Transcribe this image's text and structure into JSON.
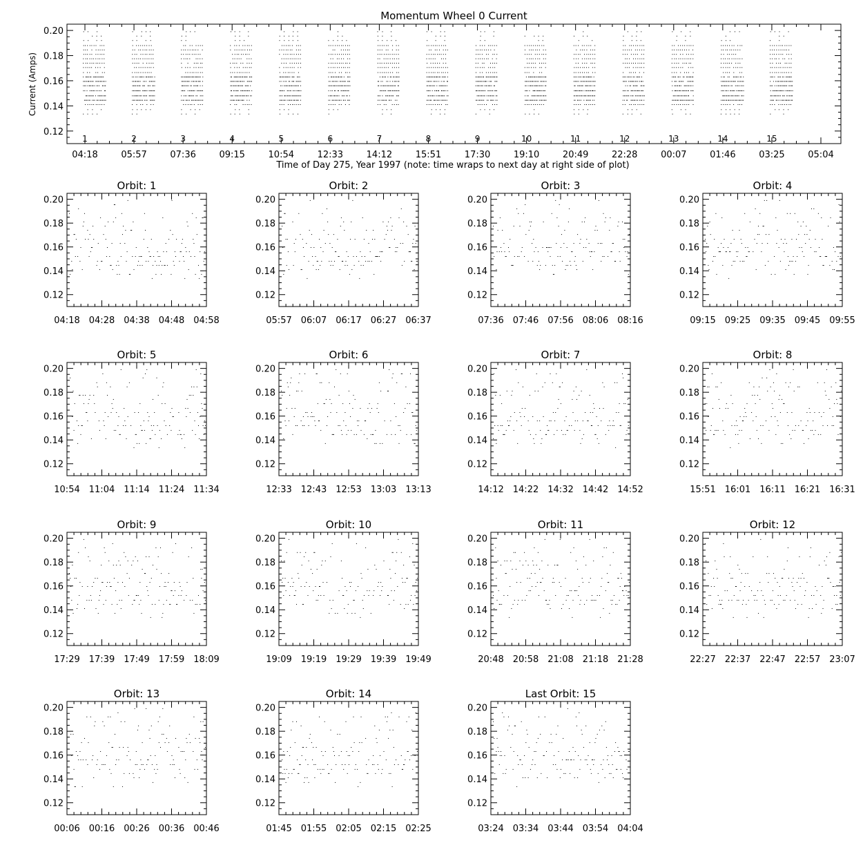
{
  "chart_data": {
    "type": "scatter",
    "title": "Momentum Wheel 0 Current",
    "ylabel": "Current (Amps)",
    "xlabel": "Time of Day 275, Year 1997 (note: time wraps to next day at right side of plot)",
    "ylim": [
      0.11,
      0.205
    ],
    "yticks": [
      "0.12",
      "0.14",
      "0.16",
      "0.18",
      "0.20"
    ],
    "xticks": [
      "04:18",
      "05:57",
      "07:36",
      "09:15",
      "10:54",
      "12:33",
      "14:12",
      "15:51",
      "17:30",
      "19:10",
      "20:49",
      "22:28",
      "00:07",
      "01:46",
      "03:25",
      "05:04"
    ],
    "orbit_labels": [
      "1",
      "2",
      "3",
      "4",
      "5",
      "6",
      "7",
      "8",
      "9",
      "10",
      "11",
      "12",
      "13",
      "14",
      "15"
    ],
    "levels": [
      0.1335,
      0.137,
      0.141,
      0.1445,
      0.148,
      0.152,
      0.156,
      0.1595,
      0.163,
      0.1665,
      0.1705,
      0.174,
      0.1775,
      0.181,
      0.1845,
      0.188,
      0.192,
      0.1955,
      0.199
    ],
    "level_weights": [
      1,
      2,
      3,
      7,
      7,
      8,
      7,
      6,
      6,
      5,
      4,
      3,
      3,
      3,
      3,
      3,
      2,
      1,
      1
    ],
    "orbits": [
      {
        "title": "Orbit: 1",
        "xticks": [
          "04:18",
          "04:28",
          "04:38",
          "04:48",
          "04:58"
        ]
      },
      {
        "title": "Orbit: 2",
        "xticks": [
          "05:57",
          "06:07",
          "06:17",
          "06:27",
          "06:37"
        ]
      },
      {
        "title": "Orbit: 3",
        "xticks": [
          "07:36",
          "07:46",
          "07:56",
          "08:06",
          "08:16"
        ]
      },
      {
        "title": "Orbit: 4",
        "xticks": [
          "09:15",
          "09:25",
          "09:35",
          "09:45",
          "09:55"
        ]
      },
      {
        "title": "Orbit: 5",
        "xticks": [
          "10:54",
          "11:04",
          "11:14",
          "11:24",
          "11:34"
        ]
      },
      {
        "title": "Orbit: 6",
        "xticks": [
          "12:33",
          "12:43",
          "12:53",
          "13:03",
          "13:13"
        ]
      },
      {
        "title": "Orbit: 7",
        "xticks": [
          "14:12",
          "14:22",
          "14:32",
          "14:42",
          "14:52"
        ]
      },
      {
        "title": "Orbit: 8",
        "xticks": [
          "15:51",
          "16:01",
          "16:11",
          "16:21",
          "16:31"
        ]
      },
      {
        "title": "Orbit: 9",
        "xticks": [
          "17:29",
          "17:39",
          "17:49",
          "17:59",
          "18:09"
        ]
      },
      {
        "title": "Orbit: 10",
        "xticks": [
          "19:09",
          "19:19",
          "19:29",
          "19:39",
          "19:49"
        ]
      },
      {
        "title": "Orbit: 11",
        "xticks": [
          "20:48",
          "20:58",
          "21:08",
          "21:18",
          "21:28"
        ]
      },
      {
        "title": "Orbit: 12",
        "xticks": [
          "22:27",
          "22:37",
          "22:47",
          "22:57",
          "23:07"
        ]
      },
      {
        "title": "Orbit: 13",
        "xticks": [
          "00:06",
          "00:16",
          "00:26",
          "00:36",
          "00:46"
        ]
      },
      {
        "title": "Orbit: 14",
        "xticks": [
          "01:45",
          "01:55",
          "02:05",
          "02:15",
          "02:25"
        ]
      },
      {
        "title": "Last Orbit: 15",
        "xticks": [
          "03:24",
          "03:34",
          "03:44",
          "03:54",
          "04:04"
        ]
      }
    ]
  }
}
